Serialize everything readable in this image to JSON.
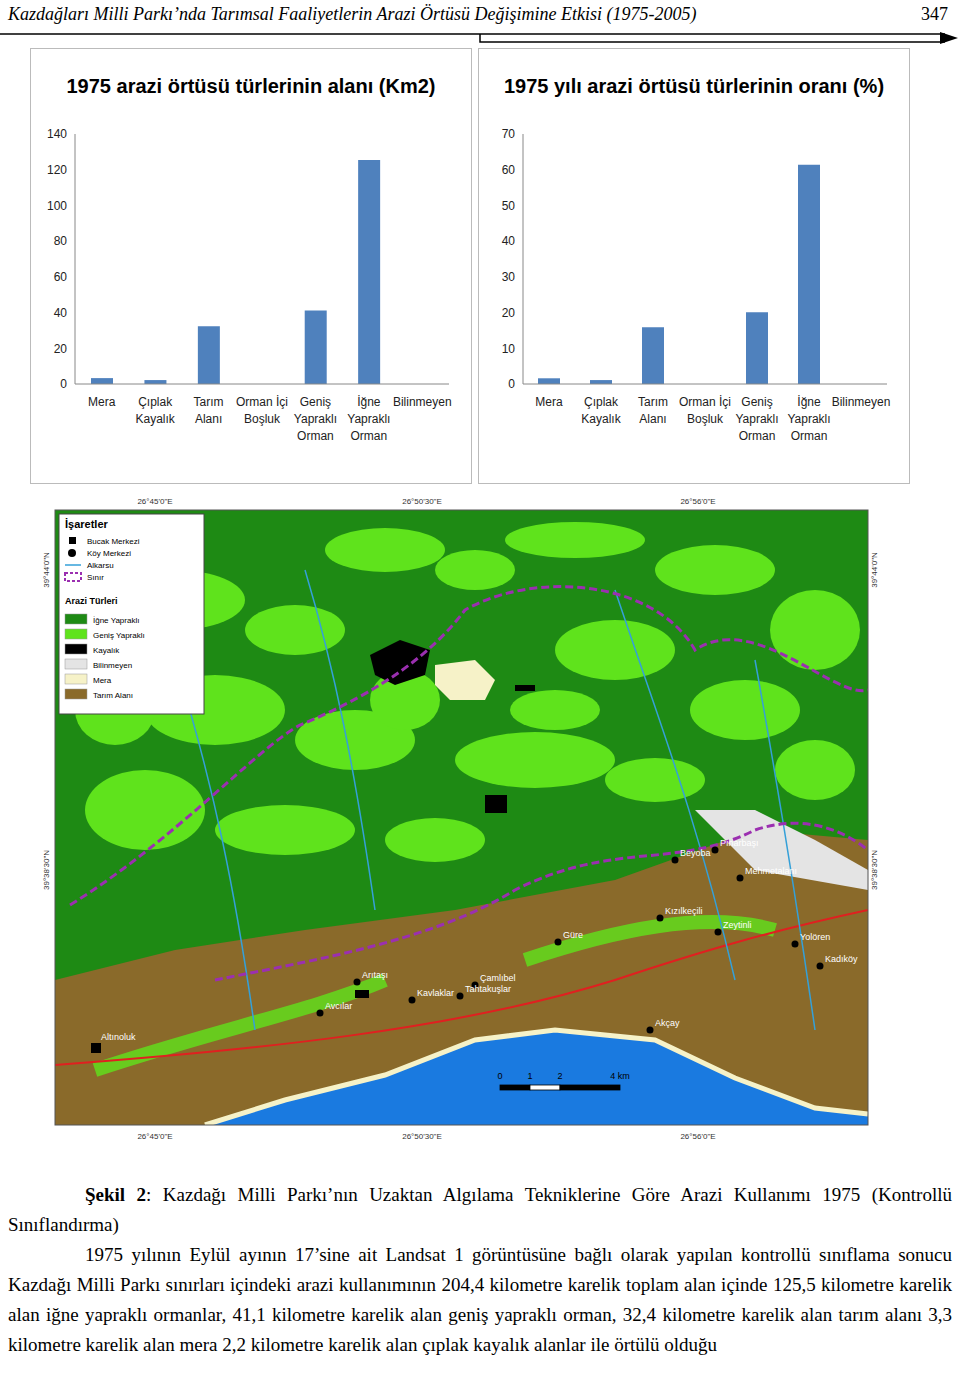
{
  "header": {
    "title": "Kazdağları Milli Parkı’nda Tarımsal Faaliyetlerin Arazi Örtüsü Değişimine Etkisi (1975-2005)",
    "page": "347"
  },
  "chart_data": [
    {
      "type": "bar",
      "title": "1975 arazi örtüsü türlerinin alanı (Km2)",
      "categories": [
        "Mera",
        "Çıplak Kayalık",
        "Tarım Alanı",
        "Orman İçi Boşluk",
        "Geniş Yapraklı Orman",
        "İğne Yapraklı Orman",
        "Bilinmeyen"
      ],
      "values": [
        3.3,
        2.2,
        32.4,
        0,
        41.1,
        125.5,
        0
      ],
      "color": "#4f81bd",
      "ylim": [
        0,
        140
      ],
      "yticks": [
        0,
        20,
        40,
        60,
        80,
        100,
        120,
        140
      ],
      "grid": false
    },
    {
      "type": "bar",
      "title": "1975 yılı arazi örtüsü türlerinin oranı (%)",
      "categories": [
        "Mera",
        "Çıplak Kayalık",
        "Tarım Alanı",
        "Orman İçi Boşluk",
        "Geniş Yapraklı Orman",
        "İğne Yapraklı Orman",
        "Bilinmeyen"
      ],
      "values": [
        1.6,
        1.1,
        15.9,
        0,
        20.1,
        61.4,
        0
      ],
      "color": "#4f81bd",
      "ylim": [
        0,
        70
      ],
      "yticks": [
        0,
        10,
        20,
        30,
        40,
        50,
        60,
        70
      ],
      "grid": false
    }
  ],
  "map": {
    "legend_title": "İşaretler",
    "symbols": [
      "Bucak Merkezi",
      "Köy Merkezi",
      "Alkarsu",
      "Sınır"
    ],
    "classes_title": "Arazi Türleri",
    "classes": [
      {
        "label": "İğne Yapraklı",
        "color": "#1e8a14"
      },
      {
        "label": "Geniş Yapraklı",
        "color": "#5fe31c"
      },
      {
        "label": "Kayalık",
        "color": "#000000"
      },
      {
        "label": "Bilinmeyen",
        "color": "#e4e4e4"
      },
      {
        "label": "Mera",
        "color": "#f6f2c8"
      },
      {
        "label": "Tarım Alanı",
        "color": "#8a6a2a"
      }
    ],
    "bucak_centers": [
      "Altınoluk"
    ],
    "villages": [
      "Beyoba",
      "Pınarbaşı",
      "Mehmetalanı",
      "Kızılkeçili",
      "Zeytinli",
      "Güre",
      "Yolören",
      "Kadıköy",
      "Arıtaşı",
      "Çamlıbel",
      "Tahtakuşlar",
      "Kavlaklar",
      "Avcılar",
      "Akçay"
    ],
    "x_ticks": [
      "26°45'0\"E",
      "26°50'30\"E",
      "26°56'0\"E"
    ],
    "y_ticks": [
      "39°44'0\"N",
      "39°38'30\"N"
    ],
    "scale": {
      "ticks": [
        0,
        1,
        2,
        4
      ],
      "unit": "km"
    }
  },
  "caption": {
    "label": "Şekil 2",
    "text": ": Kazdağı Milli Parkı’nın Uzaktan Algılama Tekniklerine Göre Arazi Kullanımı 1975 (Kontrollü Sınıflandırma)"
  },
  "paragraph": "1975 yılının Eylül ayının 17’sine ait Landsat 1 görüntüsüne bağlı olarak yapılan kontrollü sınıflama sonucu Kazdağı Milli Parkı sınırları içindeki arazi kullanımının 204,4 kilometre karelik toplam alan içinde 125,5 kilometre karelik alan iğne yapraklı ormanlar, 41,1 kilometre karelik alan geniş yapraklı orman, 32,4 kilometre karelik alan tarım alanı 3,3 kilometre karelik alan mera 2,2 kilometre karelik alan çıplak kayalık alanlar ile örtülü olduğu"
}
